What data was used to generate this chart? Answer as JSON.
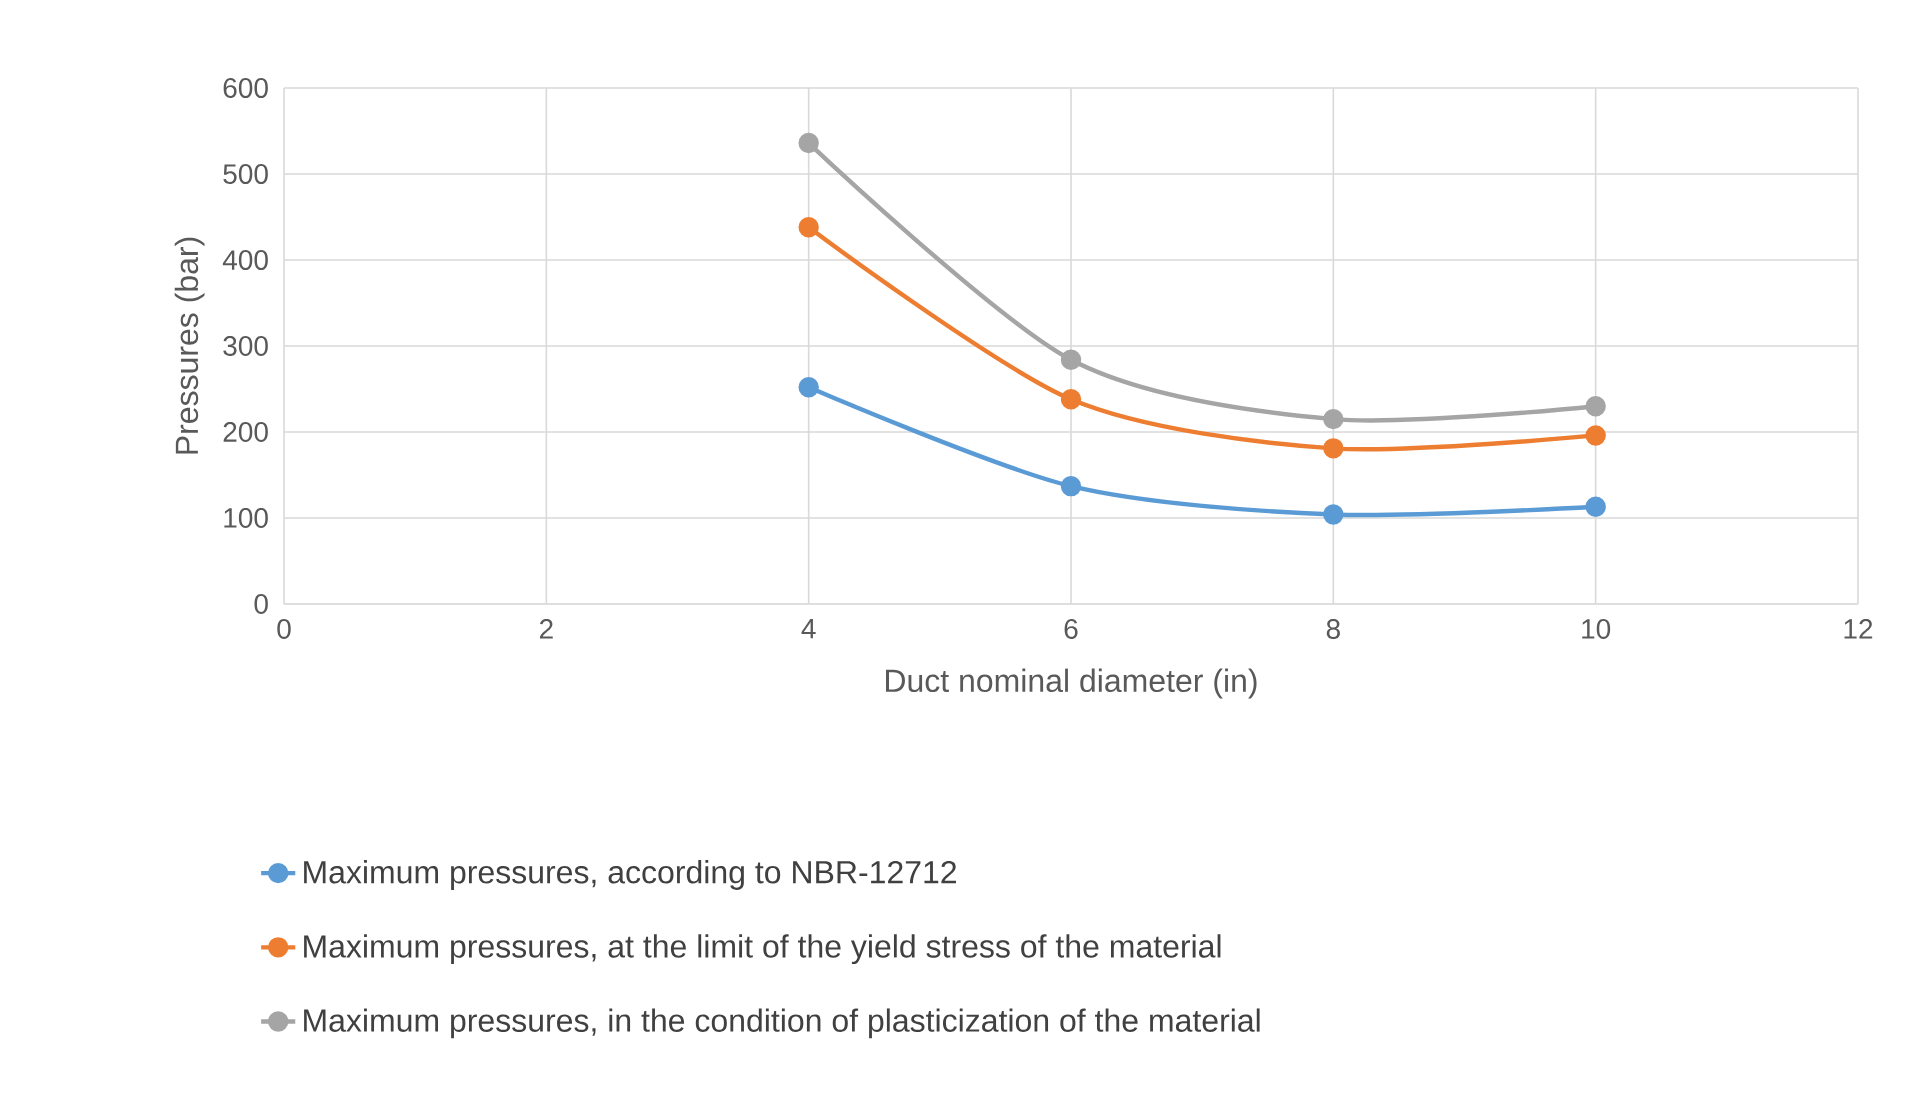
{
  "chart_data": {
    "type": "line",
    "xlabel": "Duct nominal diameter (in)",
    "ylabel": "Pressures (bar)",
    "x": [
      4,
      6,
      8,
      10
    ],
    "series": [
      {
        "name": "Maximum pressures, according to NBR-12712",
        "color": "#5b9bd5",
        "values": [
          252,
          137,
          104,
          113
        ]
      },
      {
        "name": "Maximum pressures, at the limit of the yield stress of the material",
        "color": "#ed7d31",
        "values": [
          438,
          238,
          181,
          196
        ]
      },
      {
        "name": "Maximum pressures, in the condition of plasticization of the material",
        "color": "#a5a5a5",
        "values": [
          536,
          284,
          215,
          230
        ]
      }
    ],
    "xlim": [
      0,
      12
    ],
    "xticks": [
      0,
      2,
      4,
      6,
      8,
      10,
      12
    ],
    "ylim": [
      0,
      600
    ],
    "yticks": [
      0,
      100,
      200,
      300,
      400,
      500,
      600
    ],
    "grid": true,
    "legend": "bottom",
    "marker": "circle",
    "line_style": "solid"
  }
}
